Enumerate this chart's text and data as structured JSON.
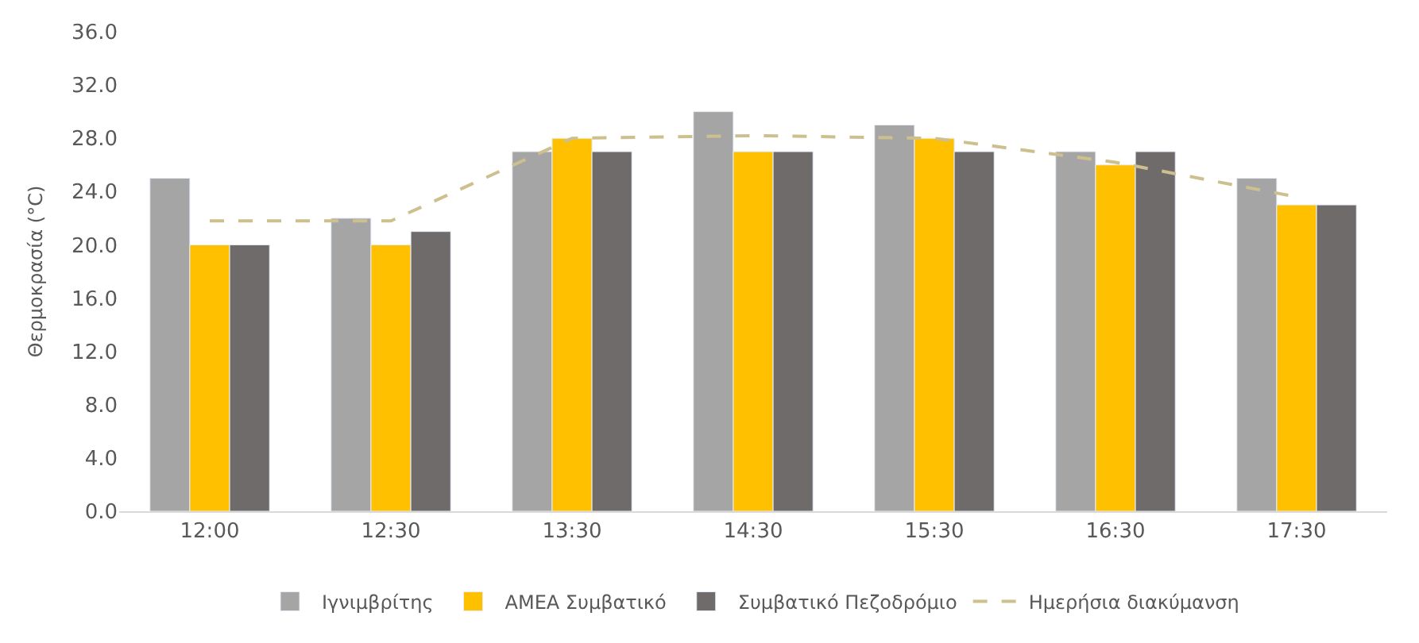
{
  "chart_data": {
    "type": "bar",
    "ylabel": "Θερμοκρασία (°C)",
    "categories": [
      "12:00",
      "12:30",
      "13:30",
      "14:30",
      "15:30",
      "16:30",
      "17:30"
    ],
    "series": [
      {
        "name": "Ιγνιμβρίτης",
        "color": "#a5a5a5",
        "values": [
          25,
          22,
          27,
          30,
          29,
          27,
          25
        ]
      },
      {
        "name": "ΑΜΕΑ Συμβατικό",
        "color": "#ffc000",
        "values": [
          20,
          20,
          28,
          27,
          28,
          26,
          23
        ]
      },
      {
        "name": "Συμβατικό Πεζοδρόμιο",
        "color": "#6f6b6b",
        "values": [
          20,
          21,
          27,
          27,
          27,
          27,
          23
        ]
      },
      {
        "name": "Ημερήσια διακύμανση",
        "type": "line",
        "line_style": "dashed",
        "color": "#cdbf8e",
        "values": [
          21.8,
          21.8,
          28.0,
          28.2,
          28.0,
          26.2,
          23.6
        ]
      }
    ],
    "ylim": [
      0,
      36
    ],
    "yticks": [
      {
        "value": 0,
        "label": "0.0"
      },
      {
        "value": 4,
        "label": "4.0"
      },
      {
        "value": 8,
        "label": "8.0"
      },
      {
        "value": 12,
        "label": "12.0"
      },
      {
        "value": 16,
        "label": "16.0"
      },
      {
        "value": 20,
        "label": "20.0"
      },
      {
        "value": 24,
        "label": "24.0"
      },
      {
        "value": 28,
        "label": "28.0"
      },
      {
        "value": 32,
        "label": "32.0"
      },
      {
        "value": 36,
        "label": "36.0"
      }
    ],
    "grid": false,
    "legend": "bottom",
    "marker": "none"
  }
}
